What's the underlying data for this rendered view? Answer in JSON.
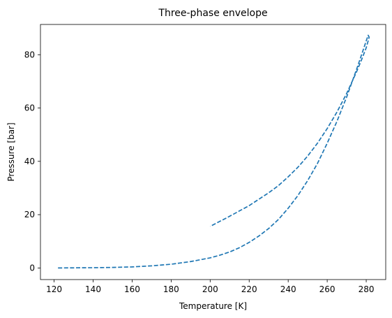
{
  "chart_data": {
    "type": "line",
    "title": "Three-phase envelope",
    "xlabel": "Temperature [K]",
    "ylabel": "Pressure [bar]",
    "xlim": [
      113,
      290
    ],
    "ylim": [
      -4.35,
      91.35
    ],
    "xticks": [
      120,
      140,
      160,
      180,
      200,
      220,
      240,
      260,
      280
    ],
    "yticks": [
      0,
      20,
      40,
      60,
      80
    ],
    "grid": false,
    "legend": "none",
    "series": [
      {
        "color": "#1f77b4",
        "linestyle": "dashed",
        "x": [
          122,
          130,
          140,
          150,
          160,
          170,
          180,
          190,
          200,
          205,
          210,
          215,
          220,
          225,
          230,
          235,
          240,
          245,
          250,
          255,
          260,
          265,
          270,
          275,
          278,
          280,
          281,
          281.5,
          281,
          280,
          278,
          275,
          270,
          265,
          260,
          255,
          250,
          245,
          240,
          235,
          230,
          225,
          220,
          215,
          210,
          205,
          200
        ],
        "y": [
          0.0,
          0.05,
          0.1,
          0.2,
          0.4,
          0.8,
          1.4,
          2.4,
          3.8,
          4.8,
          6.0,
          7.6,
          9.6,
          12.0,
          14.8,
          18.2,
          22.4,
          27.2,
          32.8,
          39.2,
          46.8,
          55.0,
          64.2,
          74.4,
          80.8,
          85.2,
          87.3,
          86.6,
          85.2,
          82.6,
          78.8,
          73.5,
          65.5,
          58.5,
          52.3,
          46.8,
          42.0,
          37.8,
          34.2,
          30.9,
          28.2,
          25.8,
          23.4,
          21.4,
          19.4,
          17.5,
          15.6
        ]
      }
    ]
  }
}
